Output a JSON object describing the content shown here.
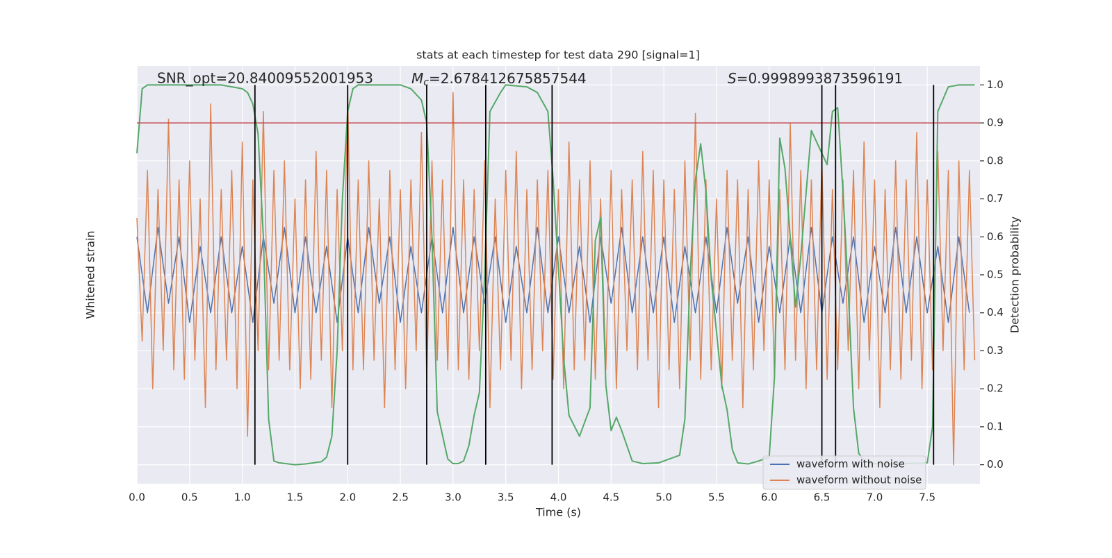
{
  "chart_data": {
    "type": "line",
    "title": "stats at each timestep for test data 290 [signal=1]",
    "annotations": [
      {
        "text": "SNR_opt=20.84009552001953"
      },
      {
        "symbol": "M",
        "subscript": "c",
        "text": "=2.678412675857544"
      },
      {
        "symbol": "S",
        "text": "=0.9998993873596191"
      }
    ],
    "xlabel": "Time (s)",
    "ylabel": "Whitened strain",
    "y2label": "Detection probability",
    "xlim": [
      0,
      8
    ],
    "xticks": [
      {
        "value": 0,
        "label": "0.0"
      },
      0.5,
      {
        "value": 1,
        "label": "1.0"
      },
      1.5,
      {
        "value": 2,
        "label": "2.0"
      },
      2.5,
      {
        "value": 3,
        "label": "3.0"
      },
      3.5,
      {
        "value": 4,
        "label": "4.0"
      },
      4.5,
      {
        "value": 5,
        "label": "5.0"
      },
      5.5,
      {
        "value": 6,
        "label": "6.0"
      },
      6.5,
      {
        "value": 7,
        "label": "7.0"
      },
      7.5
    ],
    "ylim": [
      -1.1,
      1.1
    ],
    "y2lim": [
      -0.05,
      1.05
    ],
    "y2ticks": [
      {
        "value": 0,
        "label": "0.0"
      },
      0.1,
      0.2,
      0.3,
      0.4,
      0.5,
      0.6,
      0.7,
      0.8,
      0.9,
      {
        "value": 1,
        "label": "1.0"
      }
    ],
    "grid": true,
    "legend": "lower right",
    "series": [
      {
        "name": "waveform with noise",
        "color": "#4c72b0",
        "x": [
          0,
          0.1,
          0.2,
          0.3,
          0.4,
          0.5,
          0.6,
          0.7,
          0.8,
          0.9,
          1,
          1.1,
          1.2,
          1.3,
          1.4,
          1.5,
          1.6,
          1.7,
          1.8,
          1.9,
          2,
          2.1,
          2.2,
          2.3,
          2.4,
          2.5,
          2.6,
          2.7,
          2.8,
          2.9,
          3,
          3.1,
          3.2,
          3.3,
          3.4,
          3.5,
          3.6,
          3.7,
          3.8,
          3.9,
          4,
          4.1,
          4.2,
          4.3,
          4.4,
          4.5,
          4.6,
          4.7,
          4.8,
          4.9,
          5,
          5.1,
          5.2,
          5.3,
          5.4,
          5.5,
          5.6,
          5.7,
          5.8,
          5.9,
          6,
          6.1,
          6.2,
          6.3,
          6.4,
          6.5,
          6.6,
          6.7,
          6.8,
          6.9,
          7,
          7.1,
          7.2,
          7.3,
          7.4,
          7.5,
          7.6,
          7.7,
          7.8,
          7.9
        ],
        "values": [
          0.2,
          -0.2,
          0.25,
          -0.15,
          0.2,
          -0.25,
          0.15,
          -0.2,
          0.2,
          -0.2,
          0.15,
          -0.25,
          0.2,
          -0.15,
          0.25,
          -0.2,
          0.2,
          -0.2,
          0.15,
          -0.25,
          0.2,
          -0.2,
          0.25,
          -0.15,
          0.2,
          -0.25,
          0.15,
          -0.2,
          0.2,
          -0.2,
          0.25,
          -0.2,
          0.2,
          -0.15,
          0.2,
          -0.25,
          0.15,
          -0.2,
          0.25,
          -0.2,
          0.2,
          -0.2,
          0.15,
          -0.25,
          0.2,
          -0.15,
          0.25,
          -0.2,
          0.2,
          -0.2,
          0.2,
          -0.25,
          0.15,
          -0.2,
          0.2,
          -0.2,
          0.25,
          -0.15,
          0.2,
          -0.25,
          0.15,
          -0.2,
          0.2,
          -0.2,
          0.25,
          -0.2,
          0.2,
          -0.15,
          0.2,
          -0.25,
          0.15,
          -0.2,
          0.25,
          -0.2,
          0.2,
          -0.2,
          0.15,
          -0.25,
          0.2,
          -0.2
        ]
      },
      {
        "name": "waveform without noise",
        "color": "#dd8452",
        "x": [
          0,
          0.05,
          0.1,
          0.15,
          0.2,
          0.25,
          0.3,
          0.35,
          0.4,
          0.45,
          0.5,
          0.55,
          0.6,
          0.65,
          0.7,
          0.75,
          0.8,
          0.85,
          0.9,
          0.95,
          1,
          1.05,
          1.1,
          1.15,
          1.2,
          1.25,
          1.3,
          1.35,
          1.4,
          1.45,
          1.5,
          1.55,
          1.6,
          1.65,
          1.7,
          1.75,
          1.8,
          1.85,
          1.9,
          1.95,
          2,
          2.05,
          2.1,
          2.15,
          2.2,
          2.25,
          2.3,
          2.35,
          2.4,
          2.45,
          2.5,
          2.55,
          2.6,
          2.65,
          2.7,
          2.75,
          2.8,
          2.85,
          2.9,
          2.95,
          3,
          3.05,
          3.1,
          3.15,
          3.2,
          3.25,
          3.3,
          3.35,
          3.4,
          3.45,
          3.5,
          3.55,
          3.6,
          3.65,
          3.7,
          3.75,
          3.8,
          3.85,
          3.9,
          3.95,
          4,
          4.05,
          4.1,
          4.15,
          4.2,
          4.25,
          4.3,
          4.35,
          4.4,
          4.45,
          4.5,
          4.55,
          4.6,
          4.65,
          4.7,
          4.75,
          4.8,
          4.85,
          4.9,
          4.95,
          5,
          5.05,
          5.1,
          5.15,
          5.2,
          5.25,
          5.3,
          5.35,
          5.4,
          5.45,
          5.5,
          5.55,
          5.6,
          5.65,
          5.7,
          5.75,
          5.8,
          5.85,
          5.9,
          5.95,
          6,
          6.05,
          6.1,
          6.15,
          6.2,
          6.25,
          6.3,
          6.35,
          6.4,
          6.45,
          6.5,
          6.55,
          6.6,
          6.65,
          6.7,
          6.75,
          6.8,
          6.85,
          6.9,
          6.95,
          7,
          7.05,
          7.1,
          7.15,
          7.2,
          7.25,
          7.3,
          7.35,
          7.4,
          7.45,
          7.5,
          7.55,
          7.6,
          7.65,
          7.7,
          7.75,
          7.8,
          7.85,
          7.9,
          7.95
        ],
        "values": [
          0.3,
          -0.35,
          0.55,
          -0.6,
          0.45,
          -0.4,
          0.82,
          -0.5,
          0.5,
          -0.55,
          0.6,
          -0.45,
          0.4,
          -0.7,
          0.9,
          -0.5,
          0.45,
          -0.45,
          0.55,
          -0.6,
          0.7,
          -0.85,
          0.5,
          -0.4,
          0.86,
          -0.5,
          0.55,
          -0.45,
          0.6,
          -0.5,
          0.4,
          -0.6,
          0.5,
          -0.55,
          0.65,
          -0.45,
          0.55,
          -0.7,
          0.45,
          -0.4,
          0.95,
          -0.5,
          0.5,
          -0.5,
          0.6,
          -0.45,
          0.4,
          -0.7,
          0.55,
          -0.5,
          0.45,
          -0.6,
          0.5,
          -0.4,
          0.75,
          -0.55,
          0.6,
          -0.45,
          0.5,
          -0.5,
          0.96,
          -0.5,
          0.5,
          -0.55,
          0.45,
          -0.4,
          0.6,
          -0.7,
          0.4,
          -0.5,
          0.55,
          -0.45,
          0.65,
          -0.6,
          0.45,
          -0.5,
          0.5,
          -0.4,
          0.55,
          -0.55,
          0.45,
          -0.6,
          0.7,
          -0.5,
          0.5,
          -0.45,
          0.6,
          -0.55,
          0.4,
          -0.5,
          0.55,
          -0.6,
          0.45,
          -0.4,
          0.5,
          -0.5,
          0.65,
          -0.45,
          0.55,
          -0.7,
          0.5,
          -0.5,
          0.45,
          -0.6,
          0.6,
          -0.45,
          0.85,
          -0.55,
          0.5,
          -0.5,
          0.4,
          -0.6,
          0.55,
          -0.45,
          0.5,
          -0.7,
          0.45,
          -0.5,
          0.6,
          -0.4,
          0.5,
          -0.55,
          0.45,
          -0.5,
          0.8,
          -0.45,
          0.55,
          -0.6,
          0.5,
          -0.5,
          0.6,
          -0.55,
          0.45,
          -0.5,
          0.5,
          -0.4,
          0.55,
          -0.6,
          0.7,
          -0.45,
          0.5,
          -0.7,
          0.45,
          -0.5,
          0.6,
          -0.55,
          0.5,
          -0.45,
          0.75,
          -0.6,
          0.5,
          -0.5,
          0.65,
          -0.4,
          0.55,
          -1.0,
          0.6,
          -0.5,
          0.55,
          -0.45
        ]
      }
    ],
    "probability": {
      "color": "#55a868",
      "axis": "y2",
      "x": [
        0,
        0.05,
        0.1,
        0.3,
        0.8,
        1.0,
        1.05,
        1.1,
        1.15,
        1.2,
        1.25,
        1.3,
        1.35,
        1.5,
        1.6,
        1.75,
        1.8,
        1.85,
        1.9,
        1.95,
        2.0,
        2.05,
        2.1,
        2.5,
        2.6,
        2.7,
        2.75,
        2.8,
        2.85,
        2.95,
        3.0,
        3.05,
        3.1,
        3.15,
        3.2,
        3.25,
        3.3,
        3.35,
        3.45,
        3.5,
        3.7,
        3.8,
        3.9,
        3.95,
        4.05,
        4.1,
        4.2,
        4.3,
        4.35,
        4.4,
        4.45,
        4.5,
        4.55,
        4.6,
        4.7,
        4.8,
        4.95,
        5.0,
        5.15,
        5.2,
        5.25,
        5.3,
        5.35,
        5.4,
        5.45,
        5.55,
        5.6,
        5.65,
        5.7,
        5.8,
        5.9,
        6.0,
        6.05,
        6.1,
        6.15,
        6.25,
        6.3,
        6.4,
        6.55,
        6.6,
        6.65,
        6.7,
        6.75,
        6.8,
        6.85,
        6.9,
        7.0,
        7.2,
        7.5,
        7.55,
        7.6,
        7.7,
        7.8,
        7.95
      ],
      "values": [
        0.82,
        0.99,
        1.0,
        1.0,
        1.0,
        0.99,
        0.98,
        0.95,
        0.87,
        0.6,
        0.12,
        0.01,
        0.005,
        0.0,
        0.002,
        0.008,
        0.02,
        0.075,
        0.3,
        0.7,
        0.93,
        0.99,
        1.0,
        1.0,
        0.99,
        0.96,
        0.9,
        0.6,
        0.14,
        0.015,
        0.003,
        0.003,
        0.01,
        0.05,
        0.13,
        0.19,
        0.5,
        0.93,
        0.98,
        1.0,
        0.995,
        0.98,
        0.93,
        0.75,
        0.28,
        0.13,
        0.075,
        0.15,
        0.59,
        0.65,
        0.21,
        0.09,
        0.125,
        0.09,
        0.01,
        0.003,
        0.005,
        0.01,
        0.025,
        0.12,
        0.5,
        0.75,
        0.845,
        0.72,
        0.49,
        0.21,
        0.145,
        0.04,
        0.005,
        0.002,
        0.01,
        0.02,
        0.23,
        0.86,
        0.78,
        0.415,
        0.55,
        0.88,
        0.79,
        0.93,
        0.94,
        0.72,
        0.46,
        0.15,
        0.03,
        0.01,
        0.003,
        0.002,
        0.005,
        0.1,
        0.93,
        0.995,
        1.0,
        1.0
      ]
    },
    "threshold": 0.9,
    "threshold_color": "#c44e52",
    "vlines": [
      1.12,
      2.0,
      2.75,
      3.31,
      3.94,
      6.5,
      6.63,
      7.56
    ],
    "vline_color": "#000000"
  }
}
